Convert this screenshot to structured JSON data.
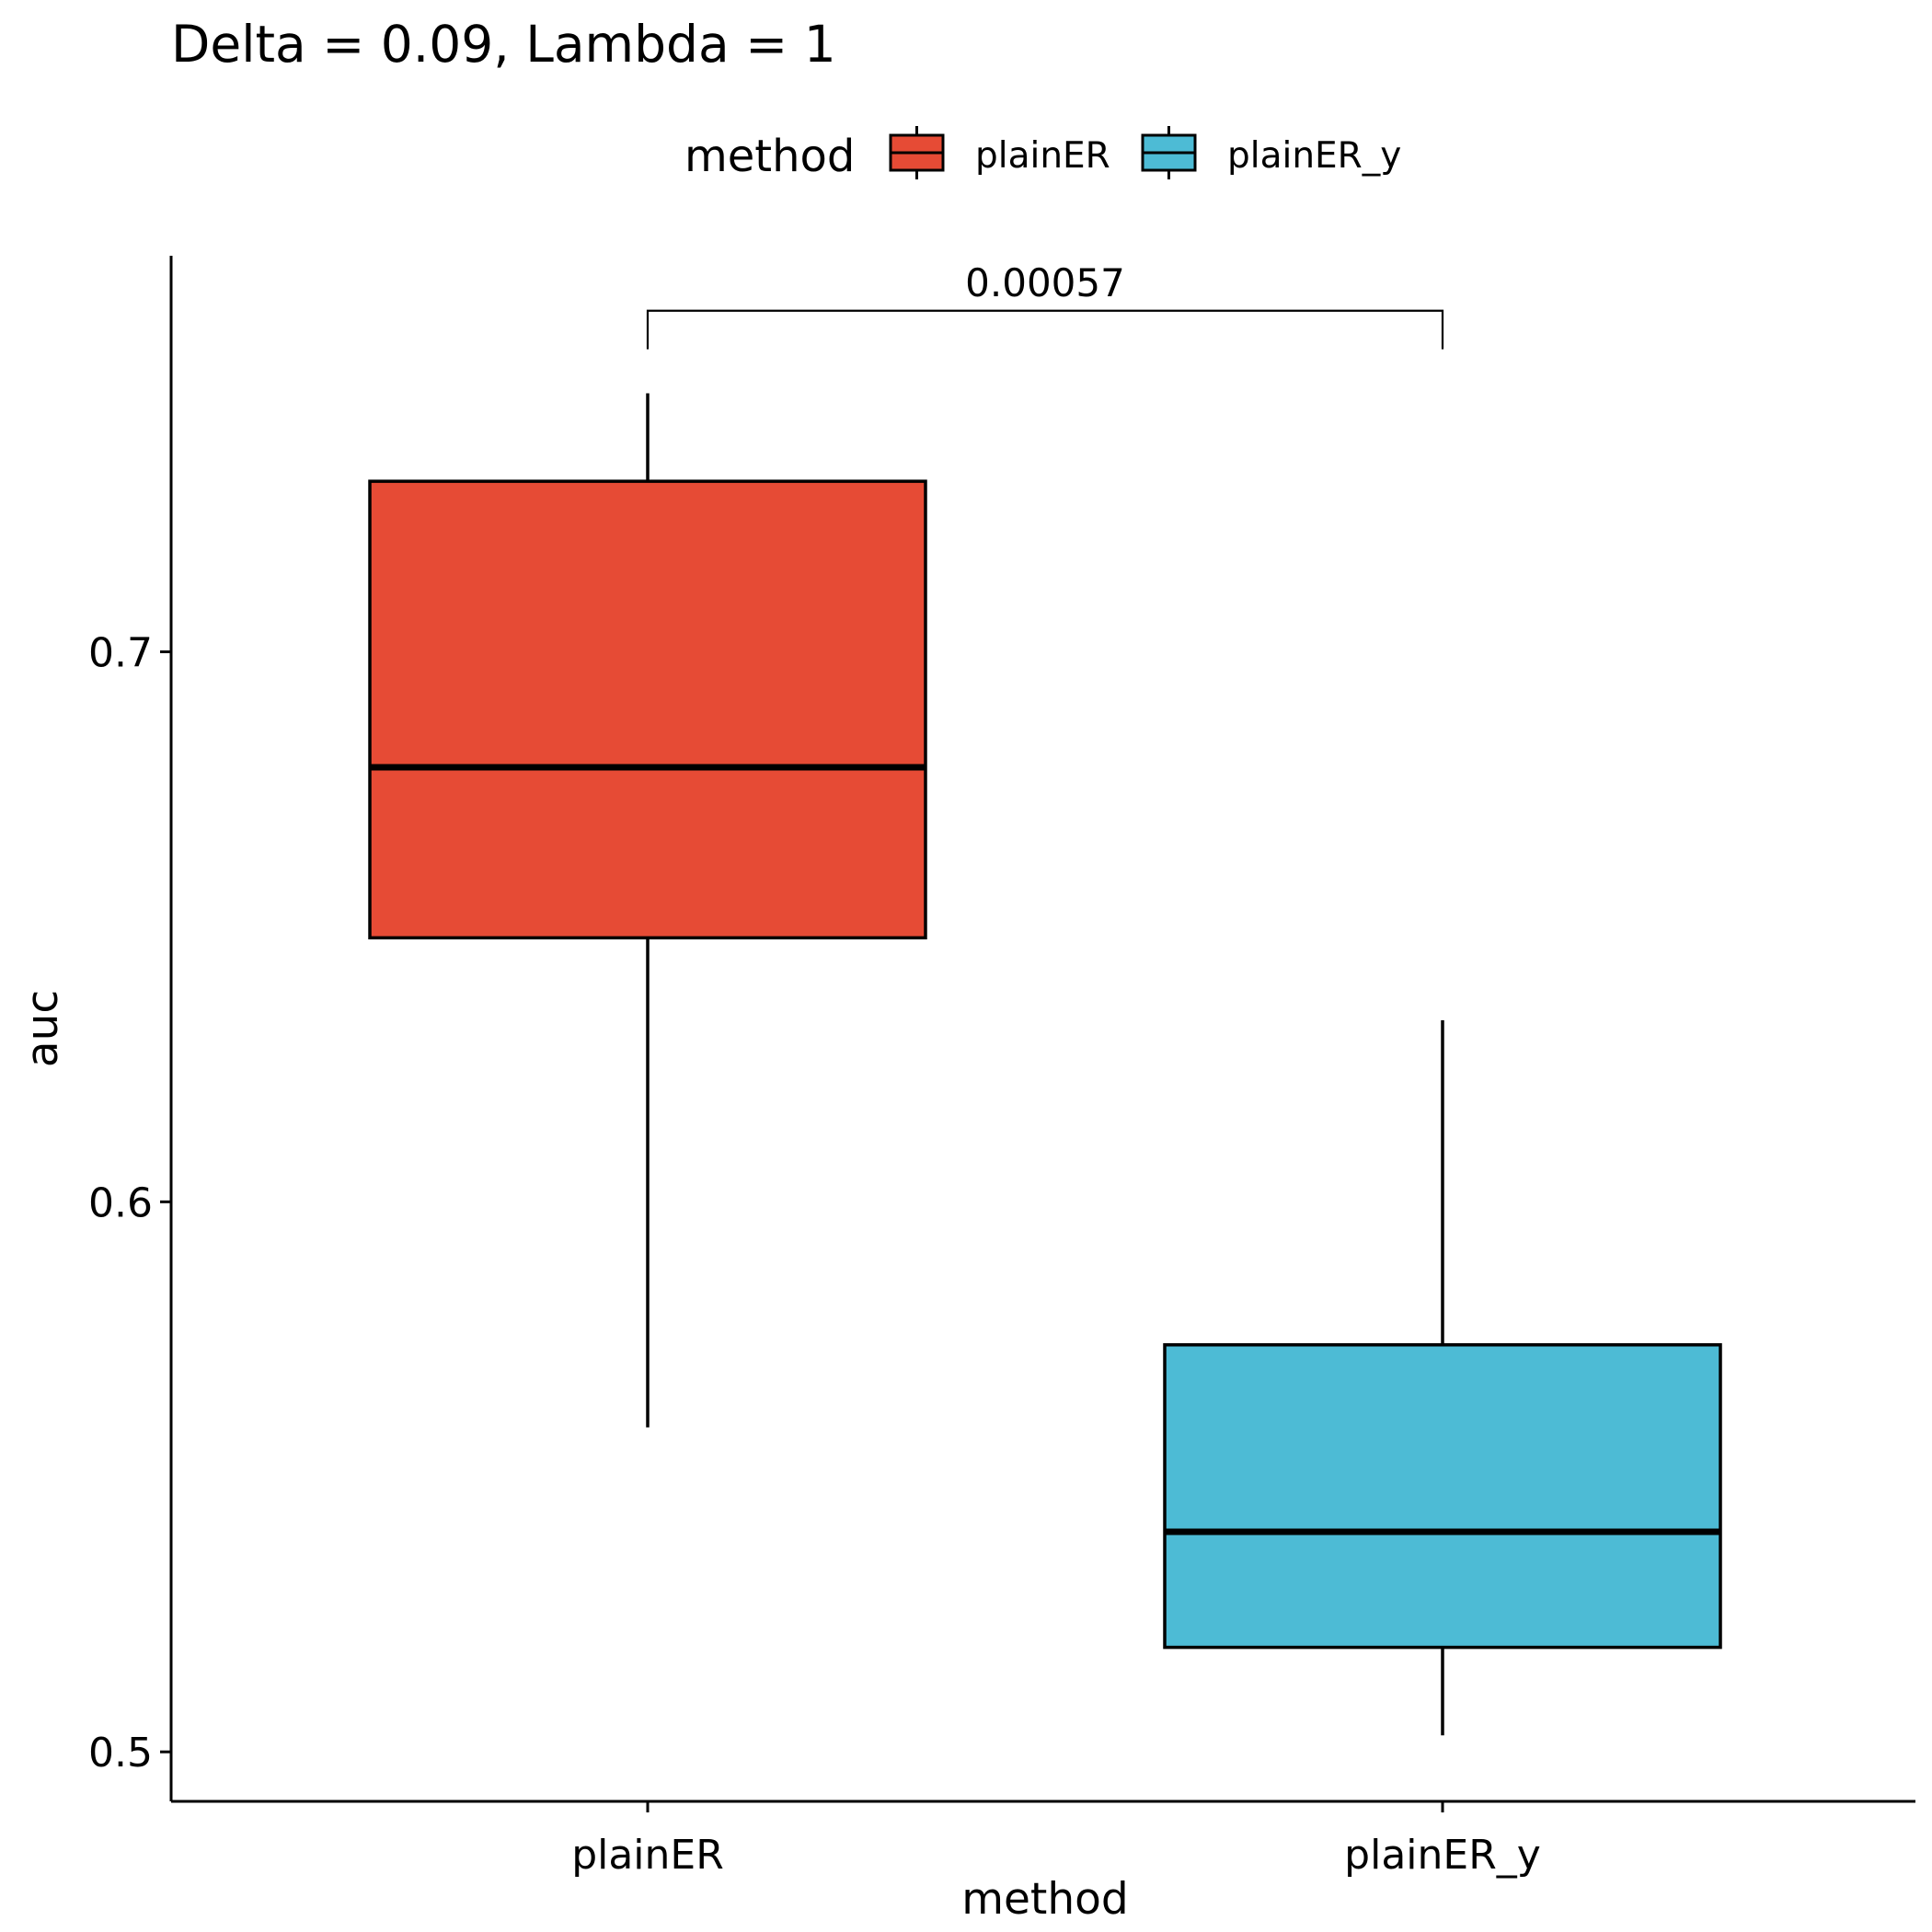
{
  "chart_data": {
    "type": "boxplot",
    "title": "Delta = 0.09, Lambda = 1",
    "xlabel": "method",
    "ylabel": "auc",
    "ylim": [
      0.491,
      0.772
    ],
    "yticks": [
      0.5,
      0.6,
      0.7
    ],
    "ytick_labels": [
      "0.5",
      "0.6",
      "0.7"
    ],
    "grid": false,
    "legend": {
      "title": "method",
      "position": "top",
      "entries": [
        {
          "label": "plainER",
          "color": "#E64B35"
        },
        {
          "label": "plainER_y",
          "color": "#4DBBD5"
        }
      ]
    },
    "categories": [
      "plainER",
      "plainER_y"
    ],
    "boxes": [
      {
        "name": "plainER",
        "color": "#E64B35",
        "whisker_low": 0.559,
        "q1": 0.648,
        "median": 0.679,
        "q3": 0.731,
        "whisker_high": 0.747
      },
      {
        "name": "plainER_y",
        "color": "#4DBBD5",
        "whisker_low": 0.503,
        "q1": 0.519,
        "median": 0.54,
        "q3": 0.574,
        "whisker_high": 0.633
      }
    ],
    "annotation": {
      "text": "0.00057",
      "groups": [
        "plainER",
        "plainER_y"
      ],
      "level": 0.762,
      "drop_to": 0.755
    }
  }
}
